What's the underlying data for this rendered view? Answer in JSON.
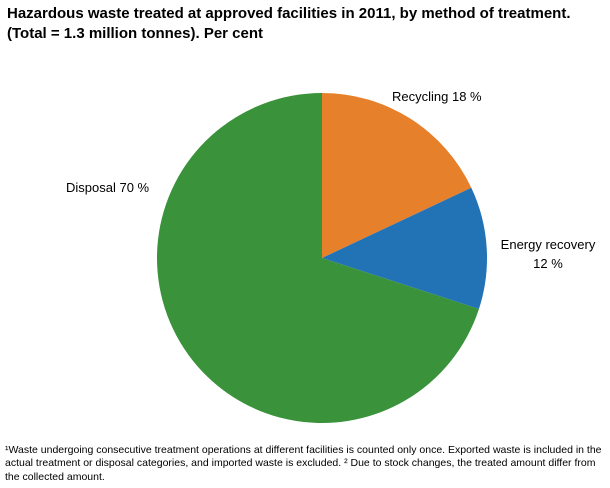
{
  "title": {
    "text": "Hazardous waste treated at approved facilities in 2011, by method of treatment. (Total = 1.3 million tonnes). Per cent"
  },
  "chart_data": {
    "type": "pie",
    "title": "Hazardous waste treated at approved facilities in 2011, by method of treatment. (Total = 1.3 million tonnes). Per cent",
    "total_label": "Total = 1.3 million tonnes",
    "unit": "Per cent",
    "start_angle": "top",
    "direction": "clockwise",
    "slices": [
      {
        "label": "Recycling",
        "value": 18,
        "display": "Recycling 18 %",
        "color": "#e6802b"
      },
      {
        "label": "Energy recovery",
        "value": 12,
        "display": "Energy recovery 12 %",
        "color": "#2272b6"
      },
      {
        "label": "Disposal",
        "value": 70,
        "display": "Disposal 70 %",
        "color": "#3a923a"
      }
    ]
  },
  "labels": {
    "recycling": "Recycling 18 %",
    "energy_recovery_line1": "Energy recovery",
    "energy_recovery_line2": "12 %",
    "disposal": "Disposal 70 %"
  },
  "footnote": "¹Waste undergoing consecutive treatment operations at different facilities is counted only once. Exported waste is included in the actual treatment or disposal categories, and imported waste is excluded. ² Due to stock changes, the treated amount differ from the collected amount."
}
